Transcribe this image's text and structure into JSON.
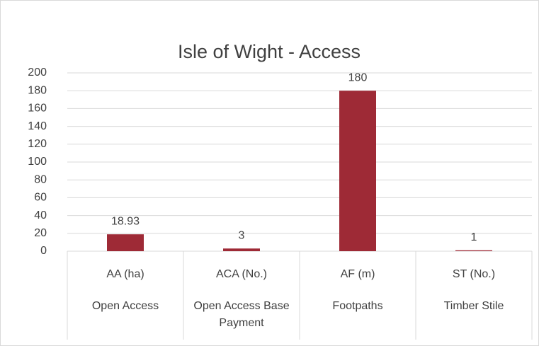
{
  "chart_data": {
    "type": "bar",
    "title": "Isle of Wight - Access",
    "categories": [
      "AA (ha)",
      "ACA (No.)",
      "AF (m)",
      "ST (No.)"
    ],
    "category_groups": [
      "Open Access",
      "Open Access Base Payment",
      "Footpaths",
      "Timber Stile"
    ],
    "values": [
      18.93,
      3,
      180,
      1
    ],
    "color": "#9e2a36",
    "ylim": [
      0,
      200
    ],
    "yticks": [
      0,
      20,
      40,
      60,
      80,
      100,
      120,
      140,
      160,
      180,
      200
    ],
    "grid": true
  }
}
